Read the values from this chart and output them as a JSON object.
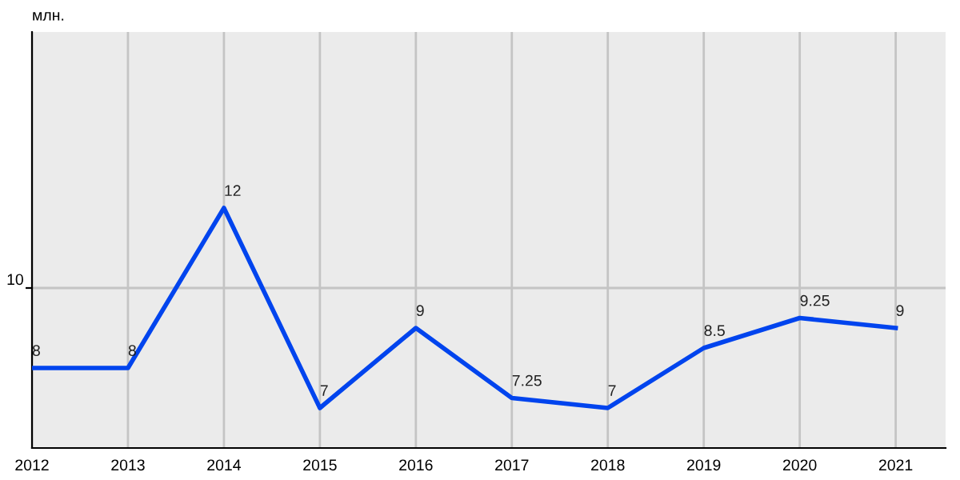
{
  "chart_data": {
    "type": "line",
    "ylabel": "млн.",
    "x": [
      2012,
      2013,
      2014,
      2015,
      2016,
      2017,
      2018,
      2019,
      2020,
      2021
    ],
    "series": [
      {
        "color": "#0044ee",
        "values": [
          8,
          8,
          12,
          7,
          9,
          7.25,
          7,
          8.5,
          9.25,
          9
        ]
      }
    ],
    "xlim": [
      2012,
      2021.52
    ],
    "xticks": [
      2012,
      2013,
      2014,
      2015,
      2016,
      2017,
      2018,
      2019,
      2020,
      2021
    ],
    "ylim": [
      6,
      16.4
    ],
    "ref_lines": [
      {
        "axis": "y",
        "value": 10,
        "label": "10",
        "color": "#c4c4c4"
      }
    ],
    "grid": "x",
    "data_labels": true,
    "marker": "none",
    "line_style": "solid"
  }
}
